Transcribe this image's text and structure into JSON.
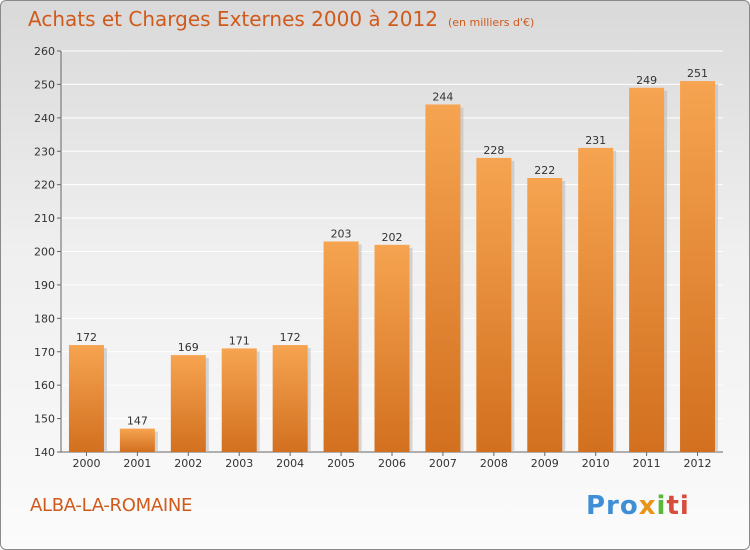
{
  "header": {
    "title": "Achats et Charges Externes 2000 à 2012",
    "subtitle": "(en milliers d'€)"
  },
  "footer": {
    "commune": "ALBA-LA-ROMAINE",
    "logo": [
      "Pro",
      "x",
      "i",
      "ti"
    ]
  },
  "colors": {
    "title": "#d05a1b",
    "bar_top": "#f6a451",
    "bar_bottom": "#d2701f",
    "grid": "#ffffff"
  },
  "chart_data": {
    "type": "bar",
    "title": "Achats et Charges Externes 2000 à 2012",
    "subtitle": "(en milliers d'€)",
    "categories": [
      "2000",
      "2001",
      "2002",
      "2003",
      "2004",
      "2005",
      "2006",
      "2007",
      "2008",
      "2009",
      "2010",
      "2011",
      "2012"
    ],
    "values": [
      172,
      147,
      169,
      171,
      172,
      203,
      202,
      244,
      228,
      222,
      231,
      249,
      251
    ],
    "xlabel": "",
    "ylabel": "",
    "ylim": [
      140,
      260
    ],
    "yticks": [
      140,
      150,
      160,
      170,
      180,
      190,
      200,
      210,
      220,
      230,
      240,
      250,
      260
    ],
    "grid": true,
    "data_labels": true
  }
}
